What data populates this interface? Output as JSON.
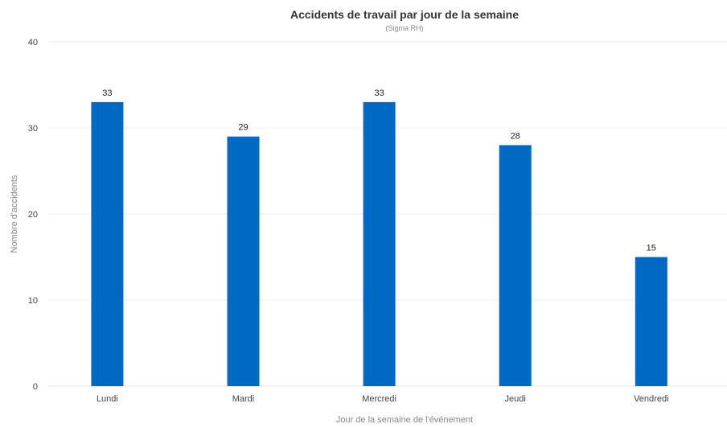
{
  "chart_data": {
    "type": "bar",
    "title": "Accidents de travail par jour de la semaine",
    "subtitle": "(Sigma RH)",
    "xlabel": "Jour de la semaine de l'événement",
    "ylabel": "Nombre d'accidents",
    "categories": [
      "Lundi",
      "Mardi",
      "Mercredi",
      "Jeudi",
      "Vendredi"
    ],
    "values": [
      33,
      29,
      33,
      28,
      15
    ],
    "ylim": [
      0,
      40
    ],
    "yticks": [
      0,
      10,
      20,
      30,
      40
    ],
    "grid": true,
    "bar_color": "#0069c4"
  }
}
